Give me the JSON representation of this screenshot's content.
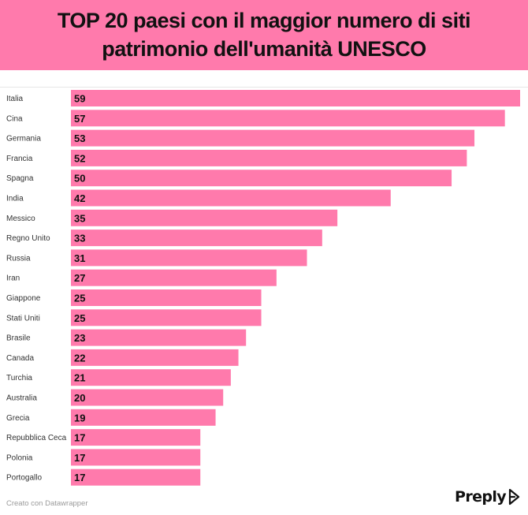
{
  "header": {
    "title_line1": "TOP 20 paesi con il maggior numero di siti",
    "title_line2": "patrimonio dell'umanità UNESCO",
    "background": "#ff7aac"
  },
  "chart_data": {
    "type": "bar",
    "orientation": "horizontal",
    "categories": [
      "Italia",
      "Cina",
      "Germania",
      "Francia",
      "Spagna",
      "India",
      "Messico",
      "Regno Unito",
      "Russia",
      "Iran",
      "Giappone",
      "Stati Uniti",
      "Brasile",
      "Canada",
      "Turchia",
      "Australia",
      "Grecia",
      "Repubblica Ceca",
      "Polonia",
      "Portogallo"
    ],
    "values": [
      59,
      57,
      53,
      52,
      50,
      42,
      35,
      33,
      31,
      27,
      25,
      25,
      23,
      22,
      21,
      20,
      19,
      17,
      17,
      17
    ],
    "xlim": [
      0,
      59
    ],
    "grid": false,
    "bar_color": "#ff7aac",
    "data_labels": "inside-left"
  },
  "footer": {
    "credit": "Creato con Datawrapper",
    "logo_text": "Preply",
    "logo_icon": "preply-logo-icon"
  }
}
